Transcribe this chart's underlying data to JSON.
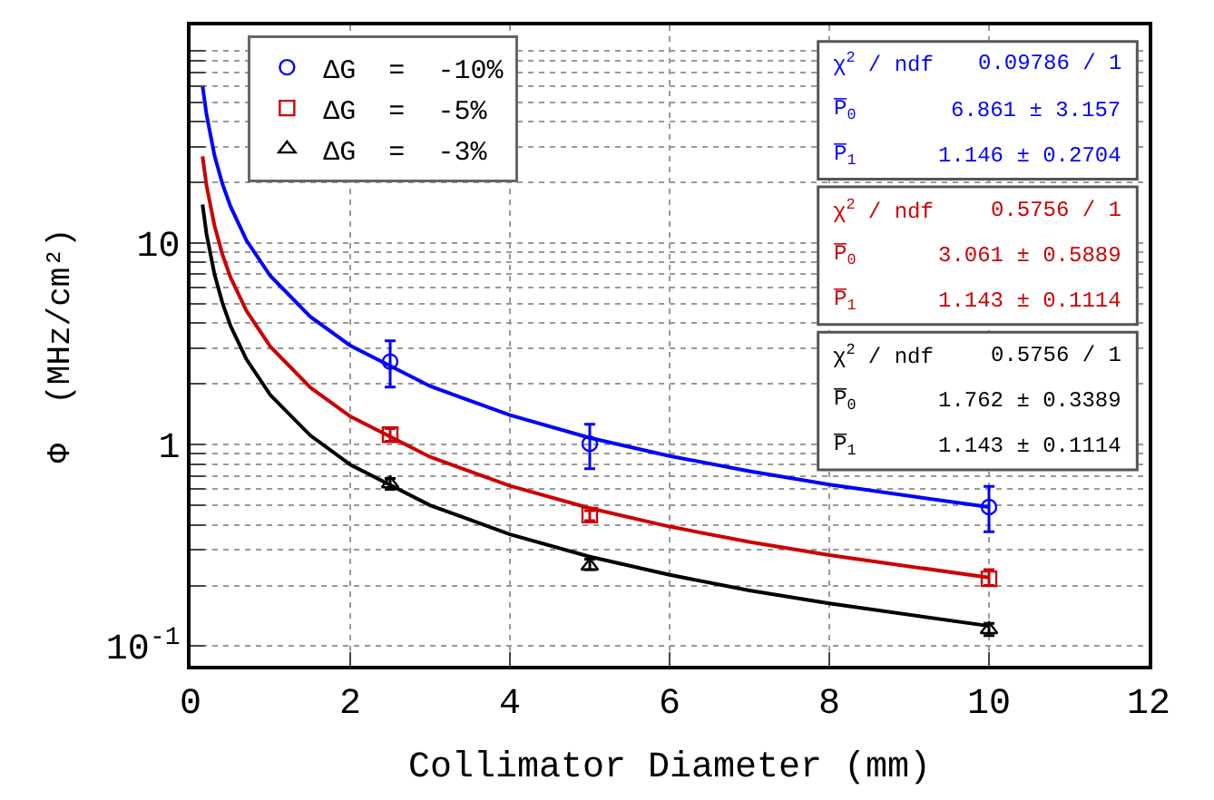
{
  "chart_data": {
    "type": "scatter",
    "xlabel": "Collimator Diameter (mm)",
    "ylabel": "Φ  (MHz/cm²)",
    "xlim": [
      0,
      12
    ],
    "xticks": [
      0,
      2,
      4,
      6,
      8,
      10,
      12
    ],
    "ylim": [
      0.08,
      120
    ],
    "log": true,
    "yticks": [
      {
        "value": 0.1,
        "label": "10$^{-1}$"
      },
      {
        "value": 0.2,
        "label": null
      },
      {
        "value": 0.3,
        "label": null
      },
      {
        "value": 0.4,
        "label": null
      },
      {
        "value": 0.5,
        "label": null
      },
      {
        "value": 0.6,
        "label": null
      },
      {
        "value": 0.7,
        "label": null
      },
      {
        "value": 0.8,
        "label": null
      },
      {
        "value": 0.9,
        "label": null
      },
      1,
      {
        "value": 2,
        "label": null
      },
      {
        "value": 3,
        "label": null
      },
      {
        "value": 4,
        "label": null
      },
      {
        "value": 5,
        "label": null
      },
      {
        "value": 6,
        "label": null
      },
      {
        "value": 7,
        "label": null
      },
      {
        "value": 8,
        "label": null
      },
      {
        "value": 9,
        "label": null
      },
      10,
      {
        "value": 20,
        "label": null
      },
      {
        "value": 30,
        "label": null
      },
      {
        "value": 40,
        "label": null
      },
      {
        "value": 50,
        "label": null
      },
      {
        "value": 60,
        "label": null
      },
      {
        "value": 70,
        "label": null
      },
      {
        "value": 80,
        "label": null
      },
      {
        "value": 90,
        "label": null
      }
    ],
    "grid": true,
    "legend": "top left",
    "series": [
      {
        "name": "ΔG  =  -10%",
        "color": "#0000ff",
        "marker": "circle",
        "x": [
          2.5,
          5,
          10
        ],
        "values": [
          2.58,
          1.01,
          0.49
        ],
        "errors": [
          [
            1.93,
            3.27
          ],
          [
            0.76,
            1.26
          ],
          [
            0.37,
            0.62
          ]
        ]
      },
      {
        "name": "ΔG  =  -5%",
        "color": "#cc0000",
        "marker": "square",
        "x": [
          2.5,
          5,
          10
        ],
        "values": [
          1.12,
          0.447,
          0.216
        ],
        "errors": [
          [
            1.04,
            1.2
          ],
          [
            0.42,
            0.47
          ],
          [
            0.2,
            0.24
          ]
        ]
      },
      {
        "name": "ΔG  =  -3%",
        "color": "#000000",
        "marker": "triangle",
        "x": [
          2.5,
          5,
          10
        ],
        "values": [
          0.64,
          0.25,
          0.121
        ],
        "errors": [
          [
            0.6,
            0.68
          ],
          [
            0.24,
            0.27
          ],
          [
            0.113,
            0.13
          ]
        ]
      },
      {
        "type": "line",
        "color": "#0000ff",
        "x": [
          0.15,
          0.2,
          0.3,
          0.4,
          0.5,
          0.7,
          1,
          1.5,
          2,
          3,
          4,
          5,
          6,
          7,
          8,
          10
        ],
        "values": [
          60.3,
          43.4,
          27.2,
          19.6,
          15.2,
          10.3,
          6.86,
          4.31,
          3.1,
          1.95,
          1.4,
          1.08,
          0.878,
          0.738,
          0.633,
          0.49
        ]
      },
      {
        "type": "line",
        "color": "#cc0000",
        "x": [
          0.15,
          0.2,
          0.3,
          0.4,
          0.5,
          0.7,
          1,
          1.5,
          2,
          3,
          4,
          5,
          6,
          7,
          8,
          10
        ],
        "values": [
          26.9,
          19.3,
          12.2,
          8.75,
          6.76,
          4.61,
          3.06,
          1.92,
          1.38,
          0.869,
          0.624,
          0.484,
          0.392,
          0.329,
          0.283,
          0.219
        ]
      },
      {
        "type": "line",
        "color": "#000000",
        "x": [
          0.15,
          0.2,
          0.3,
          0.4,
          0.5,
          0.7,
          1,
          1.5,
          2,
          3,
          4,
          5,
          6,
          7,
          8,
          10
        ],
        "values": [
          15.5,
          11.1,
          7.0,
          5.04,
          3.89,
          2.65,
          1.76,
          1.11,
          0.796,
          0.5,
          0.359,
          0.278,
          0.226,
          0.189,
          0.163,
          0.126
        ]
      }
    ],
    "annotations": [
      "χ$^{2}$ / ndf",
      "0.09786 / 1",
      "P̅$_{0}$",
      "6.861 ± 3.157",
      "P̅$_{1}$",
      "1.146 ± 0.2704",
      "χ$^{2}$ / ndf",
      "0.5756 / 1",
      "P̅$_{0}$",
      "3.061 ± 0.5889",
      "P̅$_{1}$",
      "1.143 ± 0.1114",
      "χ$^{2}$ / ndf",
      "0.5756 / 1",
      "P̅$_{0}$",
      "1.762 ± 0.3389",
      "P̅$_{1}$",
      "1.143 ± 0.1114"
    ]
  }
}
